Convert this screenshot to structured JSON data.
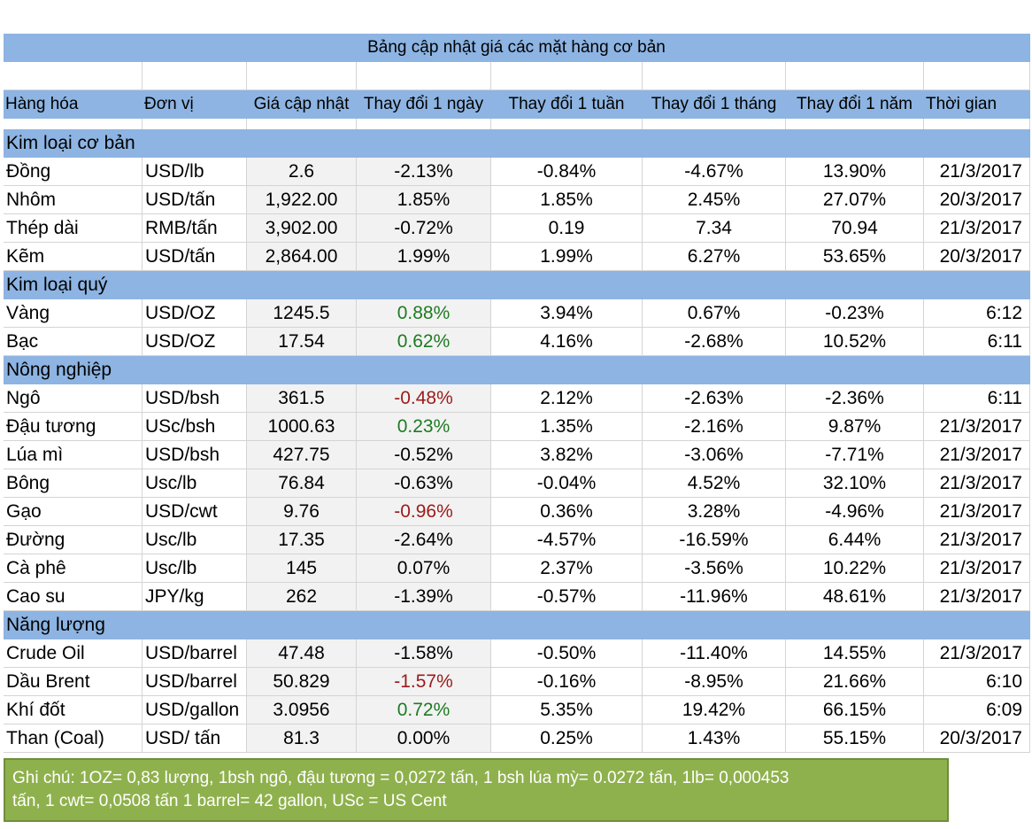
{
  "title": "Bảng cập nhật giá các mặt hàng cơ bản",
  "headers": [
    "Hàng hóa",
    "Đơn vị",
    "Giá cập nhật",
    "Thay đổi 1 ngày",
    "Thay đổi 1 tuần",
    "Thay đổi 1 tháng",
    "Thay đổi 1 năm",
    "Thời gian"
  ],
  "colors": {
    "header_bg": "#8db4e2",
    "note_bg": "#8fb14d",
    "positive_green": "#1e7b22",
    "negative_red": "#9c1a1a"
  },
  "sections": [
    {
      "category": "Kim loại cơ bản",
      "rows": [
        {
          "name": "Đồng",
          "unit": "USD/lb",
          "price": "2.6",
          "d1": "-2.13%",
          "w1": "-0.84%",
          "m1": "-4.67%",
          "y1": "13.90%",
          "time": "21/3/2017",
          "d1_color": ""
        },
        {
          "name": "Nhôm",
          "unit": "USD/tấn",
          "price": "1,922.00",
          "d1": "1.85%",
          "w1": "1.85%",
          "m1": "2.45%",
          "y1": "27.07%",
          "time": "20/3/2017",
          "d1_color": ""
        },
        {
          "name": "Thép dài",
          "unit": "RMB/tấn",
          "price": "3,902.00",
          "d1": "-0.72%",
          "w1": "0.19",
          "m1": "7.34",
          "y1": "70.94",
          "time": "21/3/2017",
          "d1_color": ""
        },
        {
          "name": "Kẽm",
          "unit": "USD/tấn",
          "price": "2,864.00",
          "d1": "1.99%",
          "w1": "1.99%",
          "m1": "6.27%",
          "y1": "53.65%",
          "time": "20/3/2017",
          "d1_color": ""
        }
      ]
    },
    {
      "category": "Kim loại quý",
      "rows": [
        {
          "name": "Vàng",
          "unit": "USD/OZ",
          "price": "1245.5",
          "d1": "0.88%",
          "w1": "3.94%",
          "m1": "0.67%",
          "y1": "-0.23%",
          "time": "6:12",
          "d1_color": "green"
        },
        {
          "name": "Bạc",
          "unit": "USD/OZ",
          "price": "17.54",
          "d1": "0.62%",
          "w1": "4.16%",
          "m1": "-2.68%",
          "y1": "10.52%",
          "time": "6:11",
          "d1_color": "green"
        }
      ]
    },
    {
      "category": "Nông nghiệp",
      "rows": [
        {
          "name": "Ngô",
          "unit": "USD/bsh",
          "price": "361.5",
          "d1": "-0.48%",
          "w1": "2.12%",
          "m1": "-2.63%",
          "y1": "-2.36%",
          "time": "6:11",
          "d1_color": "red"
        },
        {
          "name": "Đậu tương",
          "unit": "USc/bsh",
          "price": "1000.63",
          "d1": "0.23%",
          "w1": "1.35%",
          "m1": "-2.16%",
          "y1": "9.87%",
          "time": "21/3/2017",
          "d1_color": "green"
        },
        {
          "name": "Lúa mì",
          "unit": "USD/bsh",
          "price": "427.75",
          "d1": "-0.52%",
          "w1": "3.82%",
          "m1": "-3.06%",
          "y1": "-7.71%",
          "time": "21/3/2017",
          "d1_color": ""
        },
        {
          "name": "Bông",
          "unit": "Usc/lb",
          "price": "76.84",
          "d1": "-0.63%",
          "w1": "-0.04%",
          "m1": "4.52%",
          "y1": "32.10%",
          "time": "21/3/2017",
          "d1_color": ""
        },
        {
          "name": "Gạo",
          "unit": "USD/cwt",
          "price": "9.76",
          "d1": "-0.96%",
          "w1": "0.36%",
          "m1": "3.28%",
          "y1": "-4.96%",
          "time": "21/3/2017",
          "d1_color": "red"
        },
        {
          "name": "Đường",
          "unit": "Usc/lb",
          "price": "17.35",
          "d1": "-2.64%",
          "w1": "-4.57%",
          "m1": "-16.59%",
          "y1": "6.44%",
          "time": "21/3/2017",
          "d1_color": ""
        },
        {
          "name": "Cà phê",
          "unit": "Usc/lb",
          "price": "145",
          "d1": "0.07%",
          "w1": "2.37%",
          "m1": "-3.56%",
          "y1": "10.22%",
          "time": "21/3/2017",
          "d1_color": ""
        },
        {
          "name": "Cao su",
          "unit": "JPY/kg",
          "price": "262",
          "d1": "-1.39%",
          "w1": "-0.57%",
          "m1": "-11.96%",
          "y1": "48.61%",
          "time": "21/3/2017",
          "d1_color": ""
        }
      ]
    },
    {
      "category": "Năng lượng",
      "rows": [
        {
          "name": "Crude Oil",
          "unit": "USD/barrel",
          "price": "47.48",
          "d1": "-1.58%",
          "w1": "-0.50%",
          "m1": "-11.40%",
          "y1": "14.55%",
          "time": "21/3/2017",
          "d1_color": ""
        },
        {
          "name": "Dầu Brent",
          "unit": "USD/barrel",
          "price": "50.829",
          "d1": "-1.57%",
          "w1": "-0.16%",
          "m1": "-8.95%",
          "y1": "21.66%",
          "time": "6:10",
          "d1_color": "red"
        },
        {
          "name": "Khí đốt",
          "unit": "USD/gallon",
          "price": "3.0956",
          "d1": "0.72%",
          "w1": "5.35%",
          "m1": "19.42%",
          "y1": "66.15%",
          "time": "6:09",
          "d1_color": "green"
        },
        {
          "name": "Than (Coal)",
          "unit": "USD/ tấn",
          "price": "81.3",
          "d1": "0.00%",
          "w1": "0.25%",
          "m1": "1.43%",
          "y1": "55.15%",
          "time": "20/3/2017",
          "d1_color": ""
        }
      ]
    }
  ],
  "note": {
    "line1": "Ghi chú: 1OZ= 0,83 lượng,  1bsh ngô, đậu tương = 0,0272 tấn, 1 bsh lúa mỳ=  0.0272 tấn, 1lb= 0,000453",
    "line2": "tấn, 1 cwt= 0,0508 tấn 1 barrel= 42 gallon, USc = US Cent"
  }
}
